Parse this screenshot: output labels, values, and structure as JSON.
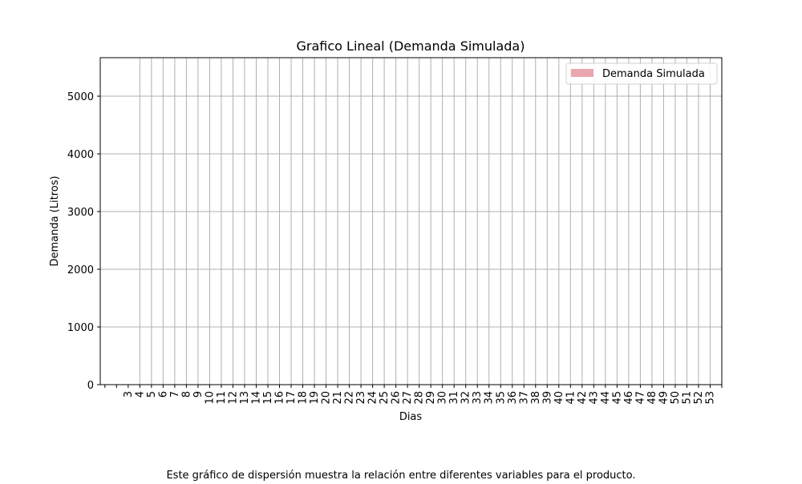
{
  "chart_data": {
    "type": "bar",
    "title": "Grafico Lineal (Demanda Simulada)",
    "x_label": "Dias",
    "y_label": "Demanda (Litros)",
    "caption": "Este gráfico de dispersión muestra la relación entre diferentes variables para el producto.",
    "categories": [
      null,
      null,
      "3",
      "4",
      "5",
      "6",
      "7",
      "8",
      "9",
      "10",
      "11",
      "12",
      "13",
      "14",
      "15",
      "16",
      "17",
      "18",
      "19",
      "20",
      "21",
      "22",
      "23",
      "24",
      "25",
      "26",
      "27",
      "28",
      "29",
      "30",
      "31",
      "32",
      "33",
      "34",
      "35",
      "36",
      "37",
      "38",
      "39",
      "40",
      "41",
      "42",
      "43",
      "44",
      "45",
      "46",
      "47",
      "48",
      "49",
      "50",
      "51",
      "52",
      "53",
      null
    ],
    "series": [
      {
        "name": "Demanda Simulada",
        "color": "#eaa6b0",
        "values": [
          0,
          0,
          0,
          0,
          0,
          0,
          0,
          0,
          0,
          0,
          0,
          0,
          0,
          0,
          0,
          0,
          0,
          0,
          0,
          0,
          0,
          0,
          0,
          0,
          0,
          0,
          0,
          0,
          0,
          0,
          0,
          0,
          0,
          0,
          0,
          0,
          0,
          0,
          0,
          0,
          0,
          0,
          0,
          0,
          0,
          0,
          0,
          0,
          0,
          0,
          0,
          0,
          0,
          0
        ]
      }
    ],
    "ylim": [
      0,
      5667
    ],
    "yticks": [
      0,
      1000,
      2000,
      3000,
      4000,
      5000
    ],
    "grid": true,
    "legend": "upper right"
  }
}
